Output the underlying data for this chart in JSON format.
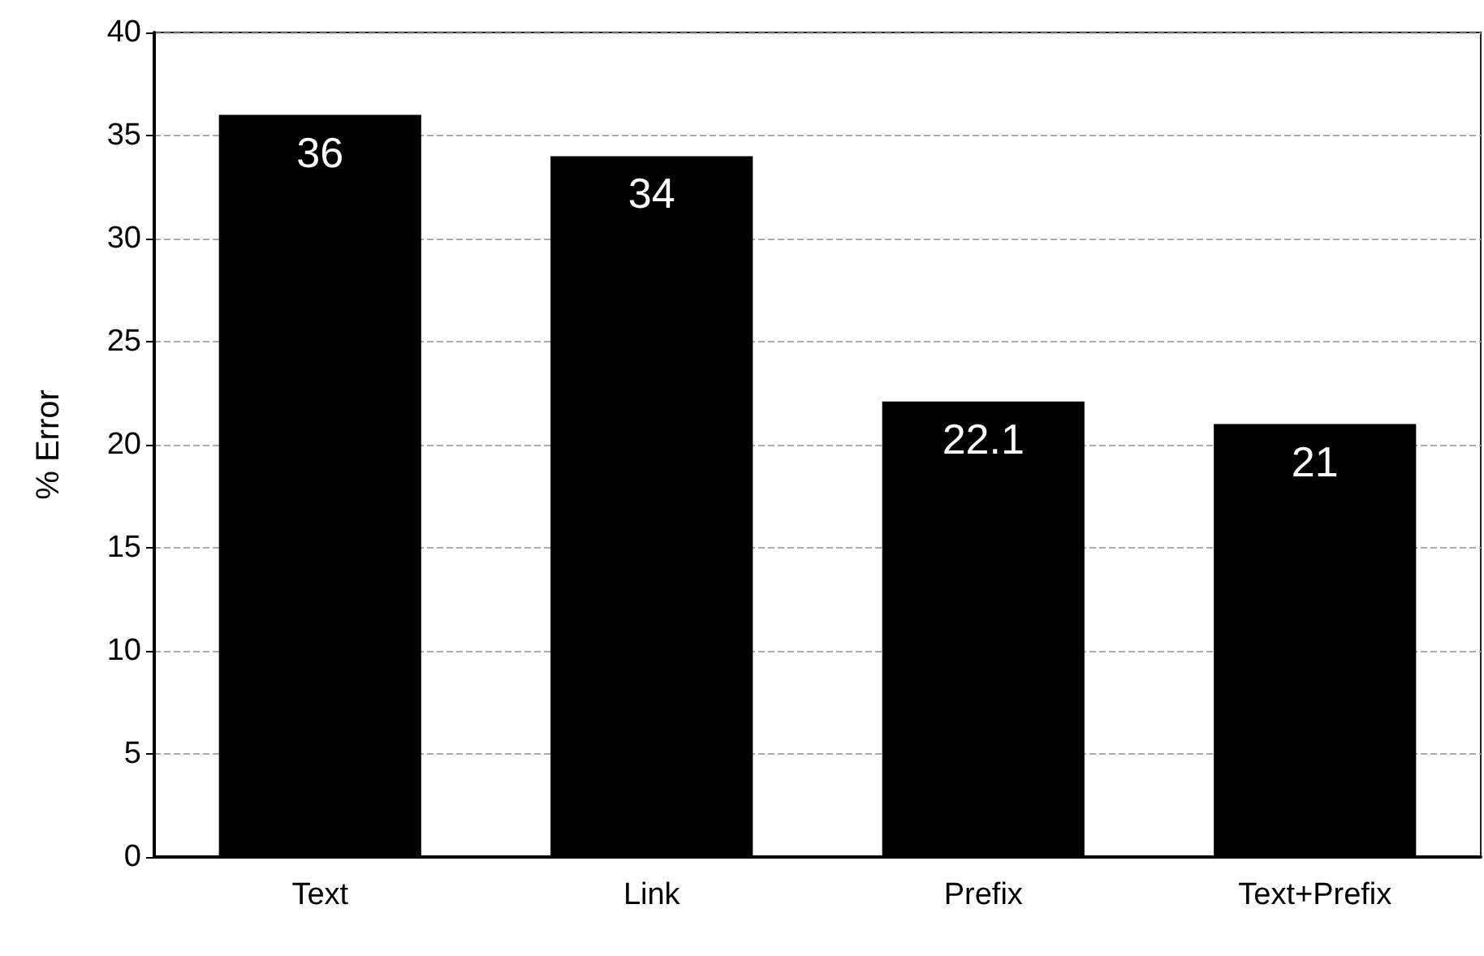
{
  "chart_data": {
    "type": "bar",
    "ylabel": "% Error",
    "categories": [
      "Text",
      "Link",
      "Prefix",
      "Text+Prefix"
    ],
    "values": [
      36,
      34,
      22.1,
      21
    ],
    "color": "#000000",
    "ylim": [
      0,
      40
    ],
    "yticks": [
      0,
      5,
      10,
      15,
      20,
      25,
      30,
      35,
      40
    ],
    "grid": "y",
    "data_labels": true
  }
}
